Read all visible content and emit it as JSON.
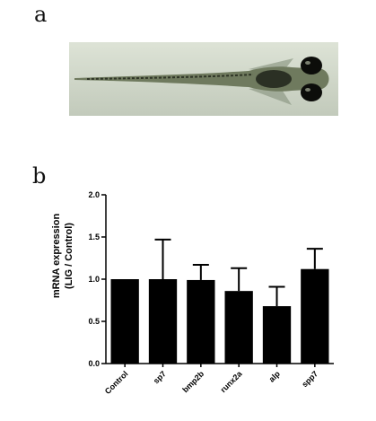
{
  "panels": {
    "a_label": "a",
    "b_label": "b"
  },
  "photo": {
    "subject": "zebrafish larva (dorsal view)",
    "background_color": "#cfd6c8",
    "body_color": "#2a2f22"
  },
  "chart_data": {
    "type": "bar",
    "categories": [
      "Control",
      "sp7",
      "bmp2b",
      "runx2a",
      "alp",
      "spp7"
    ],
    "values": [
      1.0,
      1.0,
      0.99,
      0.86,
      0.68,
      1.12
    ],
    "errors": [
      0.0,
      0.47,
      0.18,
      0.27,
      0.23,
      0.24
    ],
    "ylabel_line1": "mRNA expression",
    "ylabel_line2": "(LIG / Control)",
    "ylim": [
      0,
      2.0
    ],
    "yticks": [
      "0.0",
      "0.5",
      "1.0",
      "1.5",
      "2.0"
    ],
    "bar_color": "#000000",
    "grid": false
  }
}
